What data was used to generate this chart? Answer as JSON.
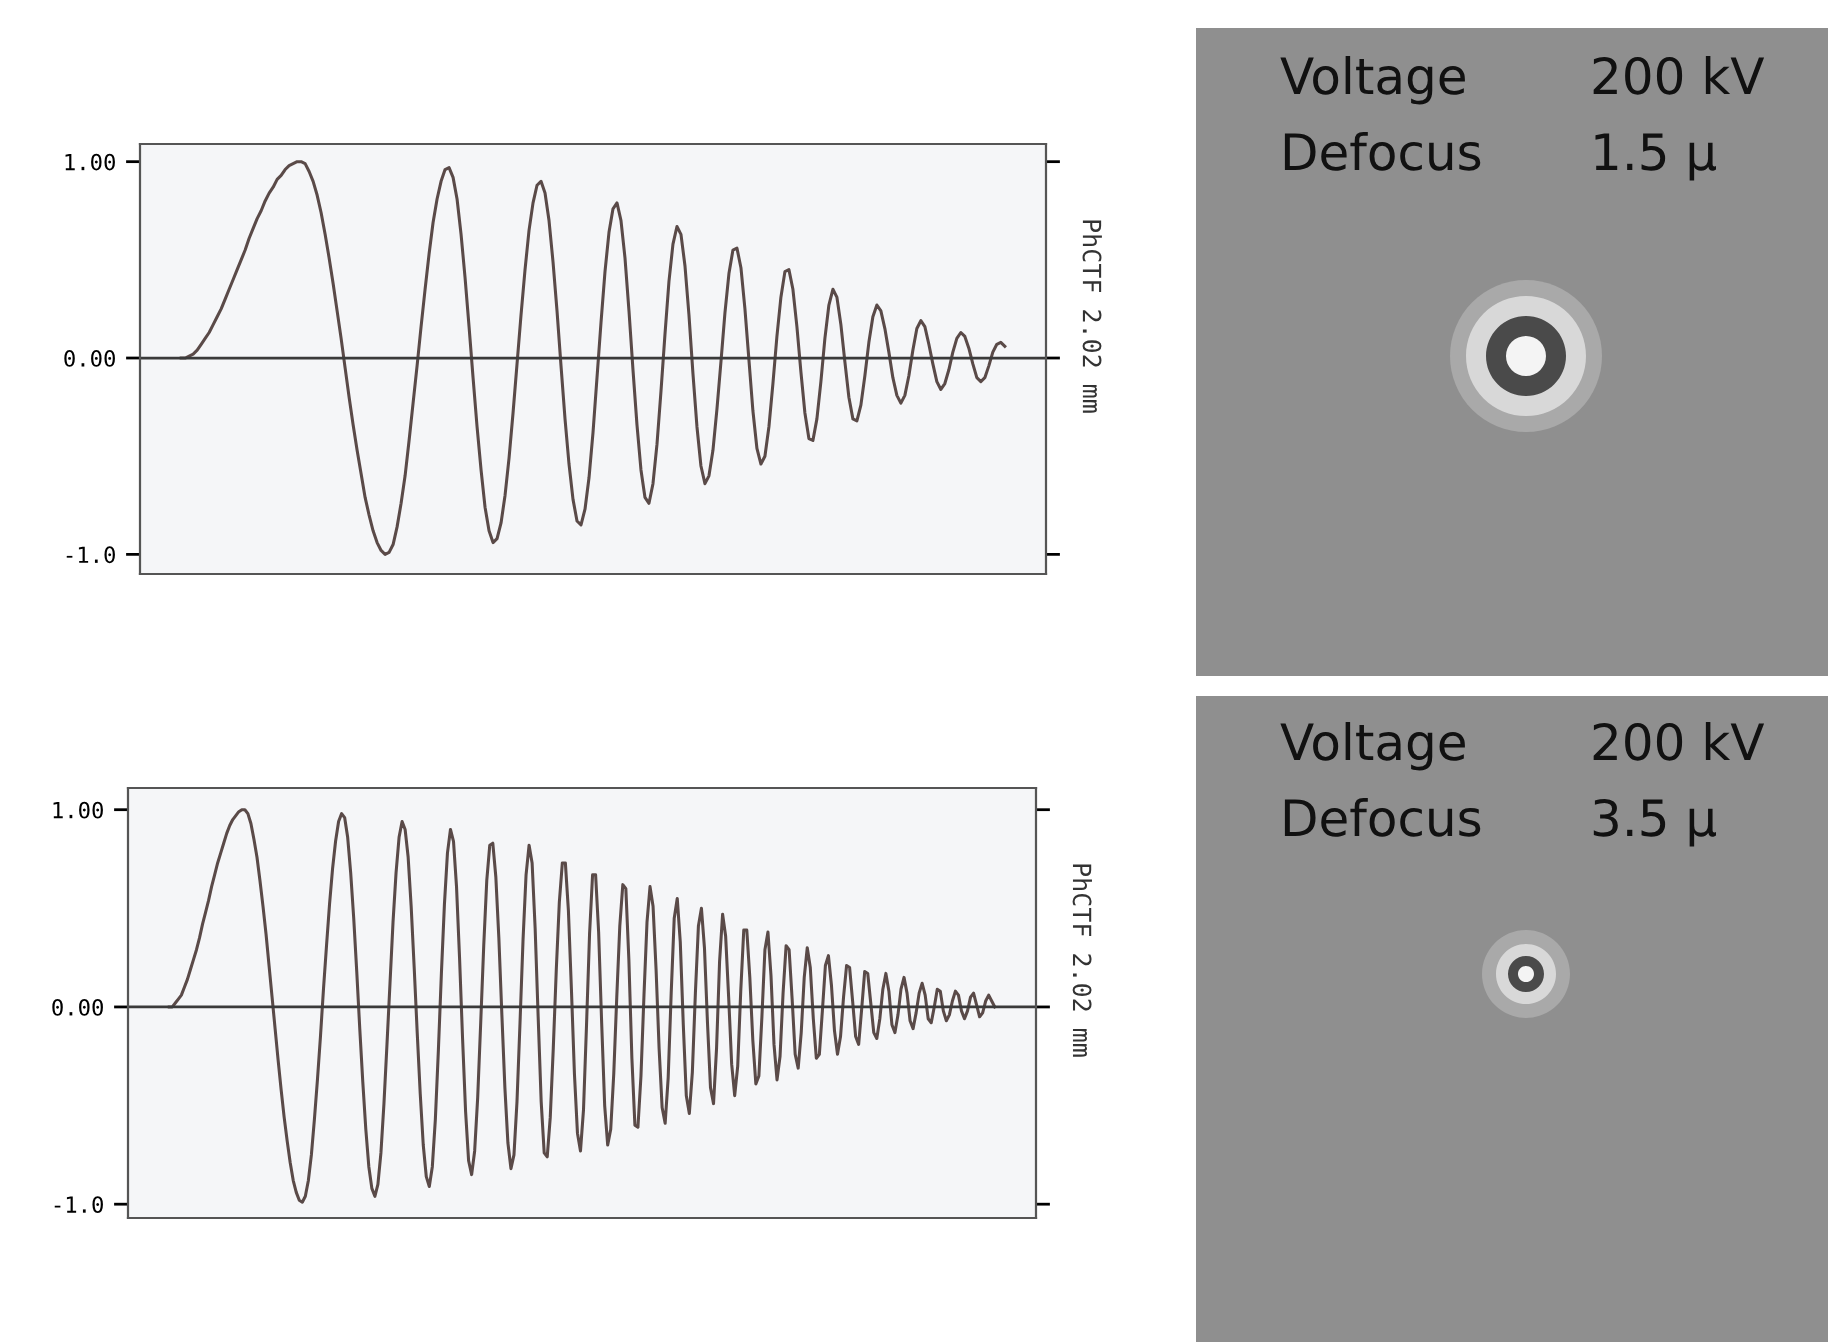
{
  "chart_data": [
    {
      "type": "line",
      "categories": [
        null,
        null,
        null,
        null,
        null,
        null,
        null,
        null,
        null,
        null,
        null,
        null,
        null,
        null,
        null,
        null,
        null,
        null,
        null,
        null,
        null,
        null,
        null,
        null,
        null,
        null,
        null,
        null,
        null,
        null,
        null,
        null,
        null,
        null,
        null,
        null,
        null,
        null,
        null,
        null,
        null,
        null,
        null,
        null,
        null,
        null,
        null,
        null,
        null,
        null,
        null,
        null,
        null,
        null,
        null,
        null,
        null,
        null,
        null,
        null,
        null,
        null,
        null,
        null,
        null,
        null,
        null,
        null,
        null,
        null,
        null,
        null,
        null,
        null,
        null,
        null,
        null,
        null,
        null,
        null,
        null,
        null,
        null,
        null,
        null,
        null,
        null,
        null,
        null,
        null,
        null,
        null,
        null,
        null,
        null,
        null,
        null,
        null,
        null,
        null,
        null,
        null,
        null,
        null,
        null,
        null,
        null,
        null,
        null,
        null,
        null,
        null,
        null,
        null,
        null,
        null,
        null,
        null,
        null,
        null,
        null,
        null,
        null,
        null,
        null,
        null,
        null,
        null,
        null,
        null,
        null,
        null,
        null,
        null,
        null,
        null,
        null,
        null,
        null,
        null,
        null,
        null,
        null,
        null,
        null,
        null,
        null,
        null,
        null,
        null,
        null,
        null,
        null,
        null,
        null,
        null,
        null,
        null,
        null,
        null,
        null,
        null,
        null,
        null,
        null,
        null,
        null,
        null,
        null,
        null,
        null,
        null,
        null,
        null,
        null,
        null,
        null,
        null,
        null,
        null,
        null,
        null,
        null,
        null,
        null,
        null,
        null,
        null,
        null,
        null,
        null,
        null,
        null,
        null,
        null,
        null,
        null,
        null,
        null,
        null,
        null,
        null,
        null,
        null,
        null,
        null,
        null
      ],
      "series": [
        {
          "color": "#5a4a48",
          "values": [
            0,
            0,
            0.01,
            0.02,
            0.04,
            0.07,
            0.1,
            0.13,
            0.17,
            0.21,
            0.25,
            0.3,
            0.35,
            0.4,
            0.45,
            0.5,
            0.55,
            0.61,
            0.66,
            0.71,
            0.75,
            0.8,
            0.84,
            0.87,
            0.91,
            0.93,
            0.96,
            0.98,
            0.99,
            1.0,
            1.0,
            0.99,
            0.95,
            0.9,
            0.83,
            0.74,
            0.63,
            0.51,
            0.38,
            0.24,
            0.1,
            -0.05,
            -0.2,
            -0.34,
            -0.47,
            -0.59,
            -0.71,
            -0.8,
            -0.88,
            -0.94,
            -0.98,
            -1.0,
            -0.99,
            -0.95,
            -0.86,
            -0.74,
            -0.6,
            -0.42,
            -0.23,
            -0.04,
            0.16,
            0.35,
            0.53,
            0.69,
            0.81,
            0.9,
            0.96,
            0.97,
            0.92,
            0.81,
            0.63,
            0.41,
            0.16,
            -0.1,
            -0.35,
            -0.57,
            -0.76,
            -0.88,
            -0.94,
            -0.92,
            -0.84,
            -0.7,
            -0.51,
            -0.28,
            -0.03,
            0.22,
            0.45,
            0.65,
            0.79,
            0.88,
            0.9,
            0.84,
            0.7,
            0.49,
            0.24,
            -0.04,
            -0.31,
            -0.54,
            -0.72,
            -0.83,
            -0.85,
            -0.77,
            -0.61,
            -0.38,
            -0.1,
            0.18,
            0.44,
            0.64,
            0.76,
            0.79,
            0.7,
            0.51,
            0.24,
            -0.06,
            -0.34,
            -0.57,
            -0.71,
            -0.74,
            -0.64,
            -0.44,
            -0.17,
            0.12,
            0.39,
            0.58,
            0.67,
            0.63,
            0.47,
            0.22,
            -0.08,
            -0.35,
            -0.55,
            -0.64,
            -0.6,
            -0.47,
            -0.26,
            -0.02,
            0.23,
            0.43,
            0.55,
            0.56,
            0.46,
            0.25,
            -0.01,
            -0.27,
            -0.46,
            -0.54,
            -0.5,
            -0.35,
            -0.13,
            0.11,
            0.31,
            0.44,
            0.45,
            0.35,
            0.16,
            -0.07,
            -0.28,
            -0.41,
            -0.42,
            -0.31,
            -0.12,
            0.1,
            0.27,
            0.35,
            0.31,
            0.17,
            -0.02,
            -0.2,
            -0.31,
            -0.32,
            -0.24,
            -0.09,
            0.08,
            0.21,
            0.27,
            0.24,
            0.15,
            0.03,
            -0.1,
            -0.19,
            -0.23,
            -0.19,
            -0.09,
            0.04,
            0.15,
            0.19,
            0.16,
            0.07,
            -0.03,
            -0.12,
            -0.16,
            -0.13,
            -0.06,
            0.03,
            0.1,
            0.13,
            0.11,
            0.05,
            -0.03,
            -0.1,
            -0.12,
            -0.1,
            -0.04,
            0.03,
            0.07,
            0.08,
            0.06
          ]
        }
      ],
      "ylim": [
        -1.1,
        1.09
      ],
      "yticks": [
        {
          "value": -1,
          "label": "-1.0"
        },
        {
          "value": 0,
          "label": "0.00"
        },
        {
          "value": 1,
          "label": "1.00"
        }
      ],
      "ref_lines": [
        {
          "axis": "y",
          "value": 0,
          "color": "#3a3a3a"
        }
      ],
      "tick_labels": "y",
      "annotations": [
        "PhCTF 2.02 mm",
        "Voltage",
        "200 kV",
        "Defocus",
        "1.5 μ"
      ]
    },
    {
      "type": "line",
      "categories": [
        null,
        null,
        null,
        null,
        null,
        null,
        null,
        null,
        null,
        null,
        null,
        null,
        null,
        null,
        null,
        null,
        null,
        null,
        null,
        null,
        null,
        null,
        null,
        null,
        null,
        null,
        null,
        null,
        null,
        null,
        null,
        null,
        null,
        null,
        null,
        null,
        null,
        null,
        null,
        null,
        null,
        null,
        null,
        null,
        null,
        null,
        null,
        null,
        null,
        null,
        null,
        null,
        null,
        null,
        null,
        null,
        null,
        null,
        null,
        null,
        null,
        null,
        null,
        null,
        null,
        null,
        null,
        null,
        null,
        null,
        null,
        null,
        null,
        null,
        null,
        null,
        null,
        null,
        null,
        null,
        null,
        null,
        null,
        null,
        null,
        null,
        null,
        null,
        null,
        null,
        null,
        null,
        null,
        null,
        null,
        null,
        null,
        null,
        null,
        null,
        null,
        null,
        null,
        null,
        null,
        null,
        null,
        null,
        null,
        null,
        null,
        null,
        null,
        null,
        null,
        null,
        null,
        null,
        null,
        null,
        null,
        null,
        null,
        null,
        null,
        null,
        null,
        null,
        null,
        null,
        null,
        null,
        null,
        null,
        null,
        null,
        null,
        null,
        null,
        null,
        null,
        null,
        null,
        null,
        null,
        null,
        null,
        null,
        null,
        null,
        null,
        null,
        null,
        null,
        null,
        null,
        null,
        null,
        null,
        null,
        null,
        null,
        null,
        null,
        null,
        null,
        null,
        null,
        null,
        null,
        null,
        null,
        null,
        null,
        null,
        null,
        null,
        null,
        null,
        null,
        null,
        null,
        null,
        null,
        null,
        null,
        null,
        null,
        null,
        null,
        null,
        null,
        null,
        null,
        null,
        null,
        null,
        null,
        null,
        null,
        null,
        null,
        null,
        null,
        null,
        null,
        null,
        null,
        null,
        null,
        null,
        null,
        null,
        null,
        null,
        null,
        null,
        null,
        null,
        null,
        null,
        null,
        null,
        null,
        null,
        null,
        null,
        null,
        null,
        null,
        null,
        null,
        null,
        null,
        null,
        null,
        null,
        null,
        null,
        null,
        null,
        null,
        null,
        null,
        null,
        null,
        null,
        null,
        null,
        null,
        null,
        null,
        null,
        null,
        null,
        null,
        null,
        null,
        null,
        null,
        null,
        null,
        null,
        null,
        null,
        null,
        null,
        null,
        null,
        null,
        null,
        null,
        null,
        null
      ],
      "series": [
        {
          "color": "#5a4a48",
          "values": [
            0,
            0,
            0.02,
            0.04,
            0.06,
            0.1,
            0.14,
            0.19,
            0.24,
            0.29,
            0.35,
            0.42,
            0.48,
            0.54,
            0.61,
            0.67,
            0.73,
            0.78,
            0.83,
            0.88,
            0.92,
            0.95,
            0.97,
            0.99,
            1.0,
            1.0,
            0.98,
            0.93,
            0.85,
            0.76,
            0.64,
            0.51,
            0.37,
            0.21,
            0.05,
            -0.11,
            -0.27,
            -0.42,
            -0.56,
            -0.68,
            -0.79,
            -0.88,
            -0.94,
            -0.98,
            -0.99,
            -0.96,
            -0.88,
            -0.75,
            -0.57,
            -0.37,
            -0.15,
            0.09,
            0.31,
            0.52,
            0.7,
            0.84,
            0.94,
            0.98,
            0.96,
            0.86,
            0.68,
            0.45,
            0.18,
            -0.11,
            -0.38,
            -0.62,
            -0.81,
            -0.92,
            -0.96,
            -0.9,
            -0.74,
            -0.49,
            -0.19,
            0.12,
            0.43,
            0.68,
            0.86,
            0.94,
            0.9,
            0.76,
            0.51,
            0.2,
            -0.13,
            -0.44,
            -0.7,
            -0.86,
            -0.91,
            -0.81,
            -0.57,
            -0.22,
            0.17,
            0.52,
            0.78,
            0.9,
            0.84,
            0.61,
            0.25,
            -0.16,
            -0.53,
            -0.78,
            -0.85,
            -0.73,
            -0.46,
            -0.08,
            0.31,
            0.64,
            0.82,
            0.83,
            0.66,
            0.35,
            -0.04,
            -0.41,
            -0.69,
            -0.82,
            -0.75,
            -0.48,
            -0.08,
            0.34,
            0.67,
            0.82,
            0.73,
            0.4,
            -0.05,
            -0.48,
            -0.74,
            -0.76,
            -0.56,
            -0.21,
            0.19,
            0.53,
            0.73,
            0.73,
            0.49,
            0.09,
            -0.34,
            -0.64,
            -0.73,
            -0.52,
            -0.09,
            0.37,
            0.67,
            0.67,
            0.38,
            -0.08,
            -0.5,
            -0.7,
            -0.62,
            -0.34,
            0.05,
            0.41,
            0.62,
            0.6,
            0.24,
            -0.26,
            -0.6,
            -0.61,
            -0.35,
            0.06,
            0.43,
            0.61,
            0.51,
            0.19,
            -0.21,
            -0.51,
            -0.59,
            -0.36,
            0.07,
            0.45,
            0.55,
            0.33,
            -0.09,
            -0.45,
            -0.54,
            -0.33,
            0.07,
            0.41,
            0.5,
            0.3,
            -0.08,
            -0.41,
            -0.49,
            -0.21,
            0.23,
            0.47,
            0.36,
            0.05,
            -0.29,
            -0.45,
            -0.3,
            0.08,
            0.39,
            0.39,
            0.15,
            -0.17,
            -0.39,
            -0.35,
            -0.05,
            0.29,
            0.38,
            0.16,
            -0.19,
            -0.37,
            -0.25,
            0.07,
            0.31,
            0.29,
            0.04,
            -0.24,
            -0.31,
            -0.13,
            0.15,
            0.3,
            0.2,
            -0.06,
            -0.26,
            -0.24,
            -0.02,
            0.21,
            0.26,
            0.11,
            -0.12,
            -0.24,
            -0.15,
            0.05,
            0.21,
            0.2,
            0.03,
            -0.15,
            -0.19,
            -0.01,
            0.18,
            0.17,
            0.02,
            -0.13,
            -0.16,
            -0.06,
            0.09,
            0.17,
            0.08,
            -0.09,
            -0.13,
            -0.04,
            0.09,
            0.15,
            0.07,
            -0.07,
            -0.11,
            -0.03,
            0.07,
            0.12,
            0.06,
            -0.06,
            -0.08,
            0,
            0.09,
            0.08,
            -0.02,
            -0.07,
            -0.04,
            0.03,
            0.08,
            0.06,
            -0.02,
            -0.06,
            -0.02,
            0.05,
            0.07,
            0.01,
            -0.05,
            -0.03,
            0.03,
            0.06,
            0.03,
            0
          ]
        }
      ],
      "ylim": [
        -1.07,
        1.11
      ],
      "yticks": [
        {
          "value": -1,
          "label": "-1.0"
        },
        {
          "value": 0,
          "label": "0.00"
        },
        {
          "value": 1,
          "label": "1.00"
        }
      ],
      "ref_lines": [
        {
          "axis": "y",
          "value": 0,
          "color": "#3a3a3a"
        }
      ],
      "tick_labels": "y",
      "annotations": [
        "PhCTF 2.02 mm",
        "Voltage",
        "200 kV",
        "Defocus",
        "3.5 μ"
      ]
    }
  ]
}
